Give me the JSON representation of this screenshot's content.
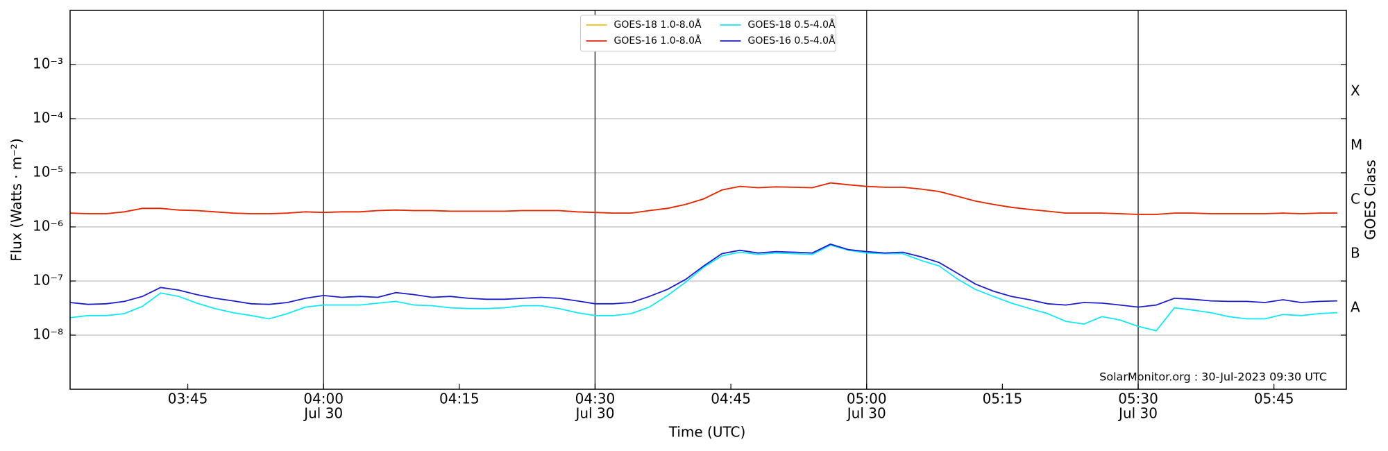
{
  "chart_data": {
    "type": "line",
    "x_label": "Time (UTC)",
    "y_label": "Flux (Watts · m⁻²)",
    "y2_label": "GOES Class",
    "annotation": "SolarMonitor.org : 30-Jul-2023 09:30 UTC",
    "log_y": true,
    "grid": true,
    "legend": "upper center",
    "xlim": [
      "03:32",
      "05:53"
    ],
    "ylim": [
      1e-09,
      0.01
    ],
    "y2lim": [
      1e-09,
      0.01
    ],
    "xticks": [
      {
        "value": "03:45",
        "label": "03:45"
      },
      {
        "value": "04:00",
        "label": "04:00",
        "date": "Jul 30"
      },
      {
        "value": "04:15",
        "label": "04:15"
      },
      {
        "value": "04:30",
        "label": "04:30",
        "date": "Jul 30"
      },
      {
        "value": "04:45",
        "label": "04:45"
      },
      {
        "value": "05:00",
        "label": "05:00",
        "date": "Jul 30"
      },
      {
        "value": "05:15",
        "label": "05:15"
      },
      {
        "value": "05:30",
        "label": "05:30",
        "date": "Jul 30"
      },
      {
        "value": "05:45",
        "label": "05:45"
      }
    ],
    "yticks": [
      {
        "value": 1e-08,
        "label": "10⁻⁸"
      },
      {
        "value": 1e-07,
        "label": "10⁻⁷"
      },
      {
        "value": 1e-06,
        "label": "10⁻⁶"
      },
      {
        "value": 1e-05,
        "label": "10⁻⁵"
      },
      {
        "value": 0.0001,
        "label": "10⁻⁴"
      },
      {
        "value": 0.001,
        "label": "10⁻³"
      }
    ],
    "y2ticks": [
      {
        "value": 3.16e-08,
        "label": "A"
      },
      {
        "value": 3.16e-07,
        "label": "B"
      },
      {
        "value": 3.16e-06,
        "label": "C"
      },
      {
        "value": 3.16e-05,
        "label": "M"
      },
      {
        "value": 0.000316,
        "label": "X"
      }
    ],
    "x": [
      "03:32",
      "03:34",
      "03:36",
      "03:38",
      "03:40",
      "03:42",
      "03:44",
      "03:46",
      "03:48",
      "03:50",
      "03:52",
      "03:54",
      "03:56",
      "03:58",
      "04:00",
      "04:02",
      "04:04",
      "04:06",
      "04:08",
      "04:10",
      "04:12",
      "04:14",
      "04:16",
      "04:18",
      "04:20",
      "04:22",
      "04:24",
      "04:26",
      "04:28",
      "04:30",
      "04:32",
      "04:34",
      "04:36",
      "04:38",
      "04:40",
      "04:42",
      "04:44",
      "04:46",
      "04:48",
      "04:50",
      "04:52",
      "04:54",
      "04:56",
      "04:58",
      "05:00",
      "05:02",
      "05:04",
      "05:06",
      "05:08",
      "05:10",
      "05:12",
      "05:14",
      "05:16",
      "05:18",
      "05:20",
      "05:22",
      "05:24",
      "05:26",
      "05:28",
      "05:30",
      "05:32",
      "05:34",
      "05:36",
      "05:38",
      "05:40",
      "05:42",
      "05:44",
      "05:46",
      "05:48",
      "05:50",
      "05:52"
    ],
    "series": [
      {
        "name": "GOES-18 1.0-8.0Å",
        "color": "#f2c010",
        "values": [
          1.8e-06,
          1.75e-06,
          1.75e-06,
          1.9e-06,
          2.2e-06,
          2.2e-06,
          2.05e-06,
          2e-06,
          1.9e-06,
          1.8e-06,
          1.75e-06,
          1.75e-06,
          1.8e-06,
          1.9e-06,
          1.85e-06,
          1.9e-06,
          1.9e-06,
          2e-06,
          2.05e-06,
          2e-06,
          2e-06,
          1.95e-06,
          1.95e-06,
          1.95e-06,
          1.95e-06,
          2e-06,
          2e-06,
          2e-06,
          1.9e-06,
          1.85e-06,
          1.8e-06,
          1.8e-06,
          2e-06,
          2.2e-06,
          2.6e-06,
          3.3e-06,
          4.8e-06,
          5.6e-06,
          5.3e-06,
          5.5e-06,
          5.4e-06,
          5.3e-06,
          6.5e-06,
          6e-06,
          5.6e-06,
          5.4e-06,
          5.4e-06,
          5e-06,
          4.5e-06,
          3.7e-06,
          3e-06,
          2.6e-06,
          2.3e-06,
          2.1e-06,
          1.95e-06,
          1.8e-06,
          1.8e-06,
          1.8e-06,
          1.75e-06,
          1.7e-06,
          1.7e-06,
          1.8e-06,
          1.8e-06,
          1.75e-06,
          1.75e-06,
          1.75e-06,
          1.75e-06,
          1.8e-06,
          1.75e-06,
          1.8e-06,
          1.8e-06
        ]
      },
      {
        "name": "GOES-16 1.0-8.0Å",
        "color": "#e3260c",
        "values": [
          1.8e-06,
          1.75e-06,
          1.75e-06,
          1.9e-06,
          2.2e-06,
          2.2e-06,
          2.05e-06,
          2e-06,
          1.9e-06,
          1.8e-06,
          1.75e-06,
          1.75e-06,
          1.8e-06,
          1.9e-06,
          1.85e-06,
          1.9e-06,
          1.9e-06,
          2e-06,
          2.05e-06,
          2e-06,
          2e-06,
          1.95e-06,
          1.95e-06,
          1.95e-06,
          1.95e-06,
          2e-06,
          2e-06,
          2e-06,
          1.9e-06,
          1.85e-06,
          1.8e-06,
          1.8e-06,
          2e-06,
          2.2e-06,
          2.6e-06,
          3.3e-06,
          4.8e-06,
          5.6e-06,
          5.3e-06,
          5.5e-06,
          5.4e-06,
          5.3e-06,
          6.5e-06,
          6e-06,
          5.6e-06,
          5.4e-06,
          5.4e-06,
          5e-06,
          4.5e-06,
          3.7e-06,
          3e-06,
          2.6e-06,
          2.3e-06,
          2.1e-06,
          1.95e-06,
          1.8e-06,
          1.8e-06,
          1.8e-06,
          1.75e-06,
          1.7e-06,
          1.7e-06,
          1.8e-06,
          1.8e-06,
          1.75e-06,
          1.75e-06,
          1.75e-06,
          1.75e-06,
          1.8e-06,
          1.75e-06,
          1.8e-06,
          1.8e-06
        ]
      },
      {
        "name": "GOES-18 0.5-4.0Å",
        "color": "#11e8f5",
        "values": [
          2.1e-08,
          2.3e-08,
          2.3e-08,
          2.5e-08,
          3.4e-08,
          6e-08,
          5.2e-08,
          3.9e-08,
          3.1e-08,
          2.6e-08,
          2.3e-08,
          2e-08,
          2.5e-08,
          3.3e-08,
          3.6e-08,
          3.6e-08,
          3.6e-08,
          3.9e-08,
          4.2e-08,
          3.6e-08,
          3.5e-08,
          3.2e-08,
          3.1e-08,
          3.1e-08,
          3.2e-08,
          3.5e-08,
          3.5e-08,
          3.1e-08,
          2.6e-08,
          2.3e-08,
          2.3e-08,
          2.5e-08,
          3.3e-08,
          5.4e-08,
          9.5e-08,
          1.8e-07,
          2.9e-07,
          3.4e-07,
          3.1e-07,
          3.3e-07,
          3.2e-07,
          3.1e-07,
          4.6e-07,
          3.7e-07,
          3.3e-07,
          3.2e-07,
          3.2e-07,
          2.4e-07,
          1.9e-07,
          1.1e-07,
          7e-08,
          5.2e-08,
          3.9e-08,
          3.1e-08,
          2.5e-08,
          1.8e-08,
          1.6e-08,
          2.2e-08,
          1.9e-08,
          1.45e-08,
          1.2e-08,
          3.2e-08,
          2.9e-08,
          2.6e-08,
          2.2e-08,
          2e-08,
          2e-08,
          2.4e-08,
          2.3e-08,
          2.5e-08,
          2.6e-08
        ]
      },
      {
        "name": "GOES-16 0.5-4.0Å",
        "color": "#1c1ccc",
        "values": [
          4e-08,
          3.7e-08,
          3.8e-08,
          4.2e-08,
          5.2e-08,
          7.6e-08,
          6.8e-08,
          5.6e-08,
          4.8e-08,
          4.3e-08,
          3.8e-08,
          3.7e-08,
          4e-08,
          4.8e-08,
          5.4e-08,
          5e-08,
          5.2e-08,
          5e-08,
          6.1e-08,
          5.6e-08,
          5e-08,
          5.2e-08,
          4.8e-08,
          4.6e-08,
          4.6e-08,
          4.8e-08,
          5e-08,
          4.8e-08,
          4.3e-08,
          3.8e-08,
          3.8e-08,
          4e-08,
          5.2e-08,
          7e-08,
          1.07e-07,
          1.9e-07,
          3.2e-07,
          3.7e-07,
          3.3e-07,
          3.5e-07,
          3.4e-07,
          3.3e-07,
          4.8e-07,
          3.8e-07,
          3.5e-07,
          3.3e-07,
          3.4e-07,
          2.8e-07,
          2.2e-07,
          1.4e-07,
          8.8e-08,
          6.5e-08,
          5.2e-08,
          4.5e-08,
          3.8e-08,
          3.6e-08,
          4e-08,
          3.9e-08,
          3.6e-08,
          3.3e-08,
          3.6e-08,
          4.8e-08,
          4.6e-08,
          4.3e-08,
          4.2e-08,
          4.2e-08,
          4e-08,
          4.5e-08,
          4e-08,
          4.2e-08,
          4.3e-08
        ]
      }
    ]
  }
}
